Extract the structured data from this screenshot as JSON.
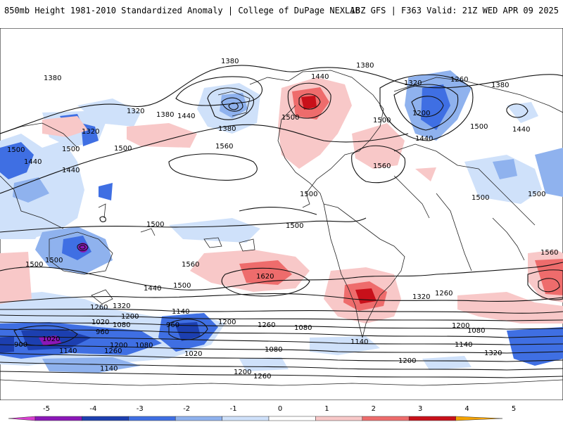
{
  "header": {
    "title": "850mb Height 1981-2010 Standardized Anomaly | College of DuPage NEXLAB",
    "run_info": "18Z GFS | F363 Valid: 21Z WED APR 09 2025"
  },
  "contour_labels": {
    "c1380a": "1380",
    "c1380b": "1380",
    "c1380c": "1380",
    "c1380d": "1380",
    "c1380e": "1380",
    "c1380f": "1380",
    "c1440a": "1440",
    "c1440b": "1440",
    "c1440c": "1440",
    "c1440d": "1440",
    "c1440e": "1440",
    "c1440f": "1440",
    "c1440g": "1440",
    "c1320a": "1320",
    "c1320b": "1320",
    "c1320c": "1320",
    "c1320d": "1320",
    "c1320e": "1320",
    "c1320f": "1320",
    "c1260a": "1260",
    "c1260b": "1260",
    "c1260c": "1260",
    "c1260d": "1260",
    "c1260e": "1260",
    "c1260f": "1260",
    "c1200a": "1200",
    "c1200b": "1200",
    "c1200c": "1200",
    "c1200d": "1200",
    "c1200e": "1200",
    "c1200f": "1200",
    "c1200g": "1200",
    "c1500a": "1500",
    "c1500b": "1500",
    "c1500c": "1500",
    "c1500d": "1500",
    "c1500e": "1500",
    "c1500f": "1500",
    "c1500g": "1500",
    "c1500h": "1500",
    "c1500i": "1500",
    "c1500j": "1500",
    "c1500k": "1500",
    "c1500l": "1500",
    "c1500m": "1500",
    "c1500n": "1500",
    "c1560a": "1560",
    "c1560b": "1560",
    "c1560c": "1560",
    "c1560d": "1560",
    "c1620a": "1620",
    "c1140a": "1140",
    "c1140b": "1140",
    "c1140c": "1140",
    "c1140d": "1140",
    "c1140e": "1140",
    "c1080a": "1080",
    "c1080b": "1080",
    "c1080c": "1080",
    "c1080d": "1080",
    "c1080e": "1080",
    "c1020a": "1020",
    "c1020b": "1020",
    "c1020c": "1020",
    "c960a": "960",
    "c960b": "960",
    "c900a": "900"
  },
  "colorbar": {
    "ticks": [
      "-5",
      "-4",
      "-3",
      "-2",
      "-1",
      "0",
      "1",
      "2",
      "3",
      "4",
      "5"
    ],
    "colors": [
      "#d93fd0",
      "#8b17b8",
      "#1c3fb0",
      "#3f6fe3",
      "#8fb2ee",
      "#cfe1fa",
      "#ffffff",
      "#f8c8c8",
      "#ee6c6c",
      "#c8101a",
      "#f5a300"
    ]
  },
  "colors": {
    "positive_light": "#f8c8c8",
    "positive_mid": "#ee6c6c",
    "positive_strong": "#c8101a",
    "negative_light": "#cfe1fa",
    "negative_mid": "#8fb2ee",
    "negative_strong": "#3f6fe3",
    "negative_deep": "#1c3fb0",
    "negative_extreme": "#8b17b8"
  }
}
